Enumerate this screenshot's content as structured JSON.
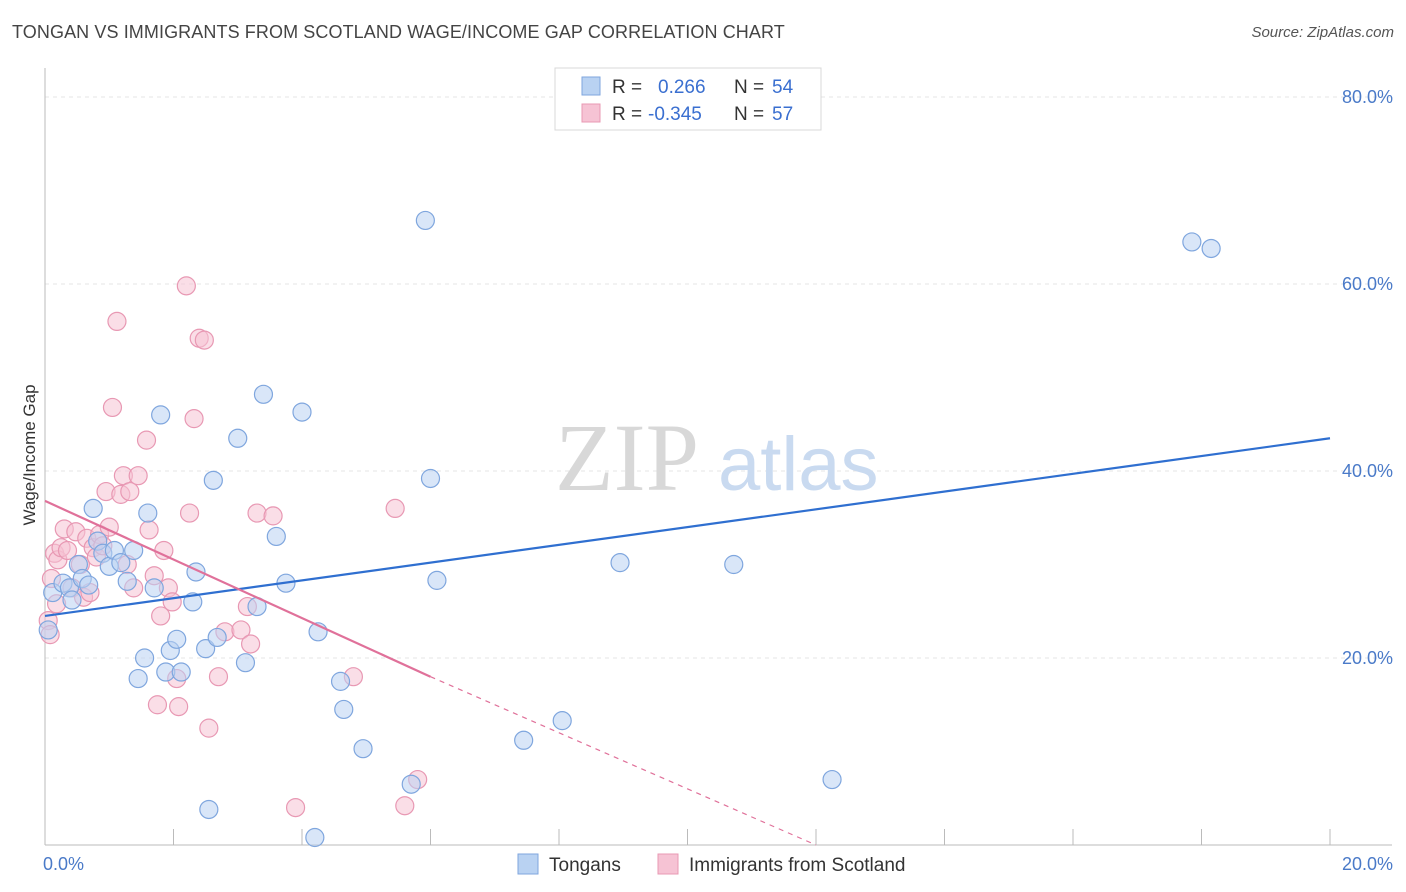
{
  "title": "TONGAN VS IMMIGRANTS FROM SCOTLAND WAGE/INCOME GAP CORRELATION CHART",
  "source": "Source: ZipAtlas.com",
  "watermark": {
    "zip": "ZIP",
    "atlas": "atlas"
  },
  "colors": {
    "blue_fill": "#b9d2f2",
    "blue_stroke": "#7fa6de",
    "blue_line": "#2f6fd0",
    "pink_fill": "#f6c3d4",
    "pink_stroke": "#e898b3",
    "pink_line": "#e0719a",
    "grid": "#e6e6e6",
    "axis_label": "#4a7ac8"
  },
  "legend": {
    "rows": [
      {
        "r_label": "R =",
        "r_value": "0.266",
        "n_label": "N =",
        "n_value": "54",
        "series": "blue"
      },
      {
        "r_label": "R =",
        "r_value": "-0.345",
        "n_label": "N =",
        "n_value": "57",
        "series": "pink"
      }
    ]
  },
  "bottom_legend": [
    "Tongans",
    "Immigrants from Scotland"
  ],
  "chart_data": {
    "type": "scatter",
    "title": "TONGAN VS IMMIGRANTS FROM SCOTLAND WAGE/INCOME GAP CORRELATION CHART",
    "xlabel": "",
    "ylabel": "Wage/Income Gap",
    "xlim": [
      0,
      20
    ],
    "ylim": [
      0,
      82
    ],
    "x_tick_labels": [
      "0.0%",
      "20.0%"
    ],
    "y_ticks": [
      20,
      40,
      60,
      80
    ],
    "y_tick_labels": [
      "20.0%",
      "40.0%",
      "60.0%",
      "80.0%"
    ],
    "series": [
      {
        "name": "Tongans",
        "color": "blue",
        "R": 0.266,
        "N": 54,
        "trend": {
          "x0": 0,
          "y0": 24.5,
          "x1": 20,
          "y1": 43.5
        },
        "points": [
          [
            0.05,
            23.0
          ],
          [
            0.12,
            27.0
          ],
          [
            0.28,
            28.0
          ],
          [
            0.38,
            27.5
          ],
          [
            0.42,
            26.2
          ],
          [
            0.52,
            30.0
          ],
          [
            0.58,
            28.5
          ],
          [
            0.68,
            27.8
          ],
          [
            0.75,
            36.0
          ],
          [
            0.82,
            32.5
          ],
          [
            0.9,
            31.2
          ],
          [
            1.0,
            29.8
          ],
          [
            1.08,
            31.5
          ],
          [
            1.18,
            30.2
          ],
          [
            1.28,
            28.2
          ],
          [
            1.38,
            31.5
          ],
          [
            1.45,
            17.8
          ],
          [
            1.55,
            20.0
          ],
          [
            1.6,
            35.5
          ],
          [
            1.7,
            27.5
          ],
          [
            1.8,
            46.0
          ],
          [
            1.88,
            18.5
          ],
          [
            1.95,
            20.8
          ],
          [
            2.05,
            22.0
          ],
          [
            2.12,
            18.5
          ],
          [
            2.3,
            26.0
          ],
          [
            2.35,
            29.2
          ],
          [
            2.5,
            21.0
          ],
          [
            2.55,
            3.8
          ],
          [
            2.62,
            39.0
          ],
          [
            2.68,
            22.2
          ],
          [
            3.0,
            43.5
          ],
          [
            3.12,
            19.5
          ],
          [
            3.3,
            25.5
          ],
          [
            3.4,
            48.2
          ],
          [
            3.6,
            33.0
          ],
          [
            3.75,
            28.0
          ],
          [
            4.0,
            46.3
          ],
          [
            4.2,
            0.8
          ],
          [
            4.25,
            22.8
          ],
          [
            4.6,
            17.5
          ],
          [
            4.65,
            14.5
          ],
          [
            4.95,
            10.3
          ],
          [
            5.7,
            6.5
          ],
          [
            5.92,
            66.8
          ],
          [
            6.0,
            39.2
          ],
          [
            6.1,
            28.3
          ],
          [
            7.45,
            11.2
          ],
          [
            8.05,
            13.3
          ],
          [
            8.95,
            30.2
          ],
          [
            10.72,
            30.0
          ],
          [
            12.25,
            7.0
          ],
          [
            17.85,
            64.5
          ],
          [
            18.15,
            63.8
          ]
        ]
      },
      {
        "name": "Immigrants from Scotland",
        "color": "pink",
        "R": -0.345,
        "N": 57,
        "trend": {
          "x0": 0,
          "y0": 36.8,
          "x1": 6.0,
          "y1": 18.0,
          "dash_to_x": 12.0,
          "dash_to_y": 0
        },
        "points": [
          [
            0.05,
            24.0
          ],
          [
            0.1,
            28.5
          ],
          [
            0.15,
            31.2
          ],
          [
            0.2,
            30.5
          ],
          [
            0.25,
            31.8
          ],
          [
            0.3,
            33.8
          ],
          [
            0.35,
            31.5
          ],
          [
            0.42,
            27.5
          ],
          [
            0.48,
            33.5
          ],
          [
            0.55,
            30.0
          ],
          [
            0.6,
            26.5
          ],
          [
            0.65,
            32.8
          ],
          [
            0.7,
            27.0
          ],
          [
            0.75,
            31.8
          ],
          [
            0.8,
            30.8
          ],
          [
            0.85,
            33.2
          ],
          [
            0.9,
            32.0
          ],
          [
            0.95,
            37.8
          ],
          [
            1.0,
            34.0
          ],
          [
            1.05,
            46.8
          ],
          [
            1.12,
            56.0
          ],
          [
            1.18,
            37.5
          ],
          [
            1.22,
            39.5
          ],
          [
            1.28,
            30.0
          ],
          [
            1.32,
            37.8
          ],
          [
            1.38,
            27.5
          ],
          [
            1.45,
            39.5
          ],
          [
            1.58,
            43.3
          ],
          [
            1.62,
            33.7
          ],
          [
            1.7,
            28.8
          ],
          [
            1.75,
            15.0
          ],
          [
            1.8,
            24.5
          ],
          [
            1.85,
            31.5
          ],
          [
            1.92,
            27.5
          ],
          [
            1.98,
            26.0
          ],
          [
            2.05,
            17.8
          ],
          [
            2.08,
            14.8
          ],
          [
            2.2,
            59.8
          ],
          [
            2.25,
            35.5
          ],
          [
            2.32,
            45.6
          ],
          [
            2.4,
            54.2
          ],
          [
            2.48,
            54.0
          ],
          [
            2.55,
            12.5
          ],
          [
            2.7,
            18.0
          ],
          [
            2.8,
            22.8
          ],
          [
            3.05,
            23.0
          ],
          [
            3.15,
            25.5
          ],
          [
            3.2,
            21.5
          ],
          [
            3.3,
            35.5
          ],
          [
            3.55,
            35.2
          ],
          [
            3.9,
            4.0
          ],
          [
            4.8,
            18.0
          ],
          [
            5.45,
            36.0
          ],
          [
            5.6,
            4.2
          ],
          [
            5.8,
            7.0
          ],
          [
            0.08,
            22.5
          ],
          [
            0.18,
            25.8
          ]
        ]
      }
    ]
  }
}
